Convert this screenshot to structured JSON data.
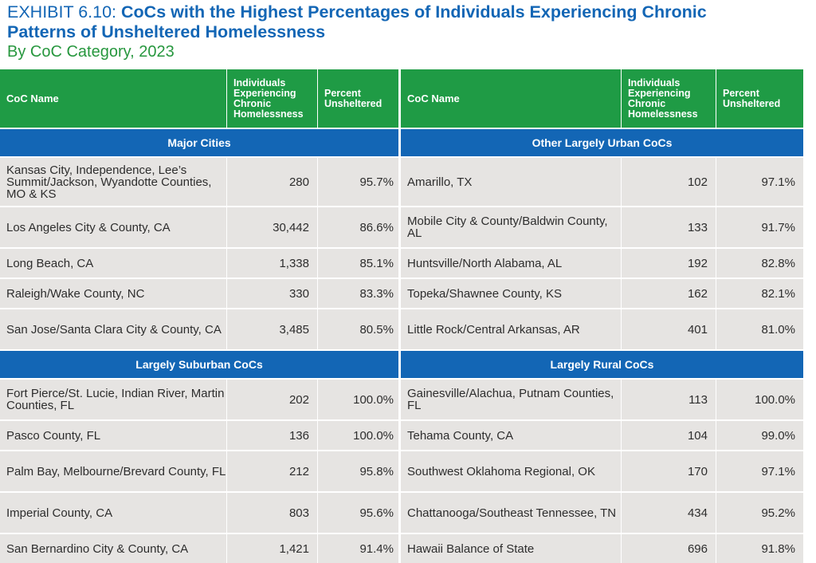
{
  "title": {
    "exhibit": "EXHIBIT 6.10: ",
    "line1": "CoCs with the Highest Percentages of Individuals Experiencing Chronic",
    "line2": "Patterns of Unsheltered Homelessness",
    "subtitle": "By CoC Category, 2023"
  },
  "columns": {
    "name": "CoC Name",
    "count": "Individuals Experiencing Chronic Homelessness",
    "pct": "Percent Unsheltered"
  },
  "left": {
    "sections": [
      {
        "title": "Major Cities",
        "rows": [
          {
            "name": "Kansas City, Independence, Lee’s Summit/Jackson, Wyandotte Counties, MO & KS",
            "count": "280",
            "pct": "95.7%"
          },
          {
            "name": "Los Angeles City & County, CA",
            "count": "30,442",
            "pct": "86.6%"
          },
          {
            "name": "Long Beach, CA",
            "count": "1,338",
            "pct": "85.1%"
          },
          {
            "name": "Raleigh/Wake County, NC",
            "count": "330",
            "pct": "83.3%"
          },
          {
            "name": "San Jose/Santa Clara City & County, CA",
            "count": "3,485",
            "pct": "80.5%"
          }
        ]
      },
      {
        "title": "Largely Suburban CoCs",
        "rows": [
          {
            "name": "Fort Pierce/St. Lucie, Indian River, Martin Counties, FL",
            "count": "202",
            "pct": "100.0%"
          },
          {
            "name": "Pasco County, FL",
            "count": "136",
            "pct": "100.0%"
          },
          {
            "name": "Palm Bay, Melbourne/Brevard County, FL",
            "count": "212",
            "pct": "95.8%"
          },
          {
            "name": "Imperial County, CA",
            "count": "803",
            "pct": "95.6%"
          },
          {
            "name": "San Bernardino City & County, CA",
            "count": "1,421",
            "pct": "91.4%"
          }
        ]
      }
    ]
  },
  "right": {
    "sections": [
      {
        "title": "Other Largely Urban CoCs",
        "rows": [
          {
            "name": "Amarillo, TX",
            "count": "102",
            "pct": "97.1%"
          },
          {
            "name": "Mobile City & County/Baldwin County, AL",
            "count": "133",
            "pct": "91.7%"
          },
          {
            "name": "Huntsville/North Alabama, AL",
            "count": "192",
            "pct": "82.8%"
          },
          {
            "name": "Topeka/Shawnee County, KS",
            "count": "162",
            "pct": "82.1%"
          },
          {
            "name": "Little Rock/Central Arkansas, AR",
            "count": "401",
            "pct": "81.0%"
          }
        ]
      },
      {
        "title": "Largely Rural CoCs",
        "rows": [
          {
            "name": "Gainesville/Alachua, Putnam Counties, FL",
            "count": "113",
            "pct": "100.0%"
          },
          {
            "name": "Tehama County, CA",
            "count": "104",
            "pct": "99.0%"
          },
          {
            "name": "Southwest Oklahoma Regional, OK",
            "count": "170",
            "pct": "97.1%"
          },
          {
            "name": "Chattanooga/Southeast Tennessee, TN",
            "count": "434",
            "pct": "95.2%"
          },
          {
            "name": "Hawaii Balance of State",
            "count": "696",
            "pct": "91.8%"
          }
        ]
      }
    ]
  }
}
